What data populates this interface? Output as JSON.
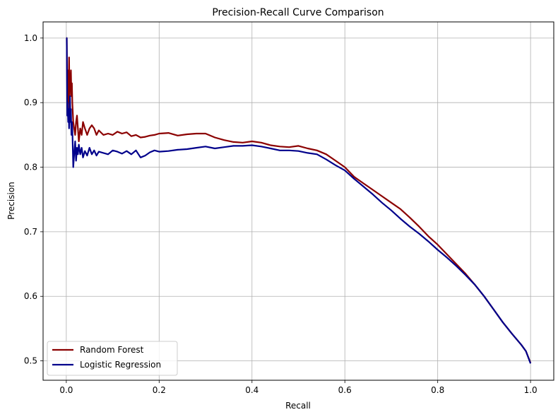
{
  "chart_data": {
    "type": "line",
    "title": "Precision-Recall Curve Comparison",
    "xlabel": "Recall",
    "ylabel": "Precision",
    "xlim": [
      -0.05,
      1.05
    ],
    "ylim": [
      0.47,
      1.025
    ],
    "x_ticks": [
      0.0,
      0.2,
      0.4,
      0.6,
      0.8,
      1.0
    ],
    "x_tick_labels": [
      "0.0",
      "0.2",
      "0.4",
      "0.6",
      "0.8",
      "1.0"
    ],
    "y_ticks": [
      0.5,
      0.6,
      0.7,
      0.8,
      0.9,
      1.0
    ],
    "y_tick_labels": [
      "0.5",
      "0.6",
      "0.7",
      "0.8",
      "0.9",
      "1.0"
    ],
    "grid": true,
    "legend_position": "lower-left",
    "series": [
      {
        "name": "Random Forest",
        "color": "#8b0000",
        "x": [
          0.0,
          0.001,
          0.002,
          0.003,
          0.004,
          0.005,
          0.006,
          0.007,
          0.008,
          0.009,
          0.01,
          0.011,
          0.012,
          0.013,
          0.015,
          0.017,
          0.019,
          0.021,
          0.023,
          0.025,
          0.027,
          0.03,
          0.033,
          0.036,
          0.04,
          0.045,
          0.05,
          0.055,
          0.06,
          0.065,
          0.07,
          0.08,
          0.09,
          0.1,
          0.11,
          0.12,
          0.13,
          0.14,
          0.15,
          0.16,
          0.17,
          0.18,
          0.19,
          0.2,
          0.22,
          0.24,
          0.26,
          0.28,
          0.3,
          0.32,
          0.34,
          0.36,
          0.38,
          0.4,
          0.42,
          0.44,
          0.46,
          0.48,
          0.5,
          0.52,
          0.54,
          0.56,
          0.58,
          0.6,
          0.62,
          0.64,
          0.66,
          0.68,
          0.7,
          0.72,
          0.74,
          0.76,
          0.78,
          0.8,
          0.82,
          0.84,
          0.86,
          0.88,
          0.9,
          0.92,
          0.94,
          0.96,
          0.98,
          0.99,
          1.0
        ],
        "y": [
          1.0,
          1.0,
          0.91,
          0.95,
          0.89,
          0.92,
          0.97,
          0.9,
          0.94,
          0.93,
          0.95,
          0.91,
          0.93,
          0.9,
          0.87,
          0.86,
          0.85,
          0.87,
          0.88,
          0.86,
          0.84,
          0.86,
          0.85,
          0.87,
          0.86,
          0.85,
          0.86,
          0.865,
          0.86,
          0.85,
          0.857,
          0.85,
          0.852,
          0.85,
          0.855,
          0.852,
          0.854,
          0.848,
          0.85,
          0.846,
          0.847,
          0.849,
          0.85,
          0.852,
          0.853,
          0.849,
          0.851,
          0.852,
          0.852,
          0.846,
          0.842,
          0.839,
          0.838,
          0.84,
          0.838,
          0.834,
          0.832,
          0.831,
          0.833,
          0.829,
          0.826,
          0.82,
          0.81,
          0.8,
          0.785,
          0.775,
          0.765,
          0.755,
          0.745,
          0.735,
          0.722,
          0.708,
          0.693,
          0.68,
          0.665,
          0.65,
          0.635,
          0.618,
          0.6,
          0.58,
          0.56,
          0.542,
          0.525,
          0.515,
          0.497
        ]
      },
      {
        "name": "Logistic Regression",
        "color": "#00008b",
        "x": [
          0.0,
          0.001,
          0.002,
          0.003,
          0.004,
          0.005,
          0.006,
          0.007,
          0.008,
          0.009,
          0.01,
          0.011,
          0.012,
          0.013,
          0.015,
          0.017,
          0.019,
          0.021,
          0.023,
          0.025,
          0.027,
          0.03,
          0.033,
          0.036,
          0.04,
          0.045,
          0.05,
          0.055,
          0.06,
          0.065,
          0.07,
          0.08,
          0.09,
          0.1,
          0.11,
          0.12,
          0.13,
          0.14,
          0.15,
          0.16,
          0.17,
          0.18,
          0.19,
          0.2,
          0.22,
          0.24,
          0.26,
          0.28,
          0.3,
          0.32,
          0.34,
          0.36,
          0.38,
          0.4,
          0.42,
          0.44,
          0.46,
          0.48,
          0.5,
          0.52,
          0.54,
          0.56,
          0.58,
          0.6,
          0.62,
          0.64,
          0.66,
          0.68,
          0.7,
          0.72,
          0.74,
          0.76,
          0.78,
          0.8,
          0.82,
          0.84,
          0.86,
          0.88,
          0.9,
          0.92,
          0.94,
          0.96,
          0.98,
          0.99,
          1.0
        ],
        "y": [
          1.0,
          1.0,
          0.88,
          0.9,
          0.87,
          0.89,
          0.86,
          0.88,
          0.91,
          0.87,
          0.89,
          0.85,
          0.87,
          0.86,
          0.8,
          0.82,
          0.84,
          0.81,
          0.83,
          0.82,
          0.835,
          0.82,
          0.83,
          0.815,
          0.825,
          0.818,
          0.83,
          0.82,
          0.826,
          0.818,
          0.824,
          0.822,
          0.82,
          0.826,
          0.824,
          0.821,
          0.825,
          0.82,
          0.826,
          0.815,
          0.818,
          0.823,
          0.826,
          0.824,
          0.825,
          0.827,
          0.828,
          0.83,
          0.832,
          0.829,
          0.831,
          0.833,
          0.833,
          0.834,
          0.832,
          0.829,
          0.826,
          0.826,
          0.825,
          0.822,
          0.82,
          0.812,
          0.803,
          0.795,
          0.782,
          0.77,
          0.758,
          0.745,
          0.733,
          0.72,
          0.708,
          0.697,
          0.685,
          0.672,
          0.66,
          0.647,
          0.633,
          0.618,
          0.6,
          0.58,
          0.56,
          0.542,
          0.525,
          0.515,
          0.496
        ]
      }
    ]
  }
}
